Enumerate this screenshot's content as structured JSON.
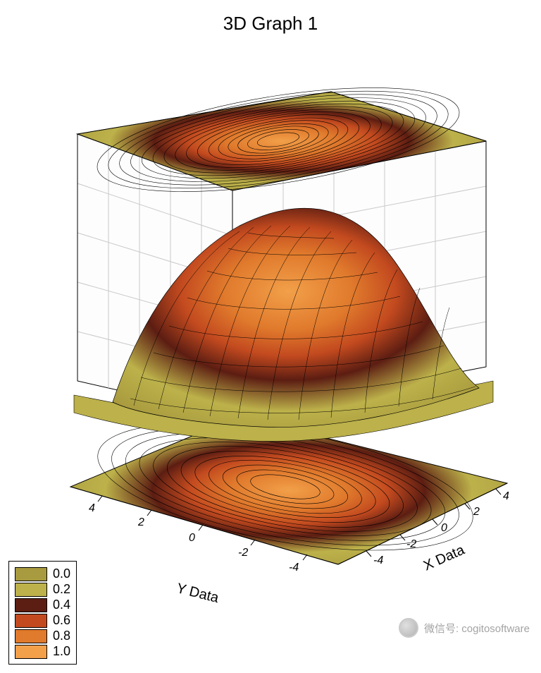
{
  "chart": {
    "type": "3d-surface-with-projections",
    "title": "3D Graph 1",
    "title_fontsize": 26,
    "background_color": "#ffffff",
    "x_axis": {
      "label": "X Data",
      "label_fontsize": 20,
      "ticks": [
        -4,
        -2,
        0,
        2,
        4
      ],
      "range": [
        -5,
        5
      ]
    },
    "y_axis": {
      "label": "Y Data",
      "label_fontsize": 20,
      "ticks": [
        -4,
        -2,
        0,
        2,
        4
      ],
      "range": [
        -5,
        5
      ]
    },
    "z_axis": {
      "range": [
        0,
        1
      ]
    },
    "surface": {
      "function_hint": "gaussian_peak",
      "mesh_line_color": "#000000",
      "mesh_line_width": 0.5,
      "grid_backdrop_color": "#c9c9c9"
    },
    "projections": {
      "top_contour": true,
      "bottom_contour": true,
      "contour_line_color": "#000000",
      "contour_count": 28
    },
    "colormap": {
      "stops": [
        {
          "value": 0.0,
          "color": "#a89a3e"
        },
        {
          "value": 0.2,
          "color": "#bcb14a"
        },
        {
          "value": 0.4,
          "color": "#5c1d12"
        },
        {
          "value": 0.6,
          "color": "#c34a1f"
        },
        {
          "value": 0.8,
          "color": "#e07a2c"
        },
        {
          "value": 1.0,
          "color": "#f2a04a"
        }
      ]
    },
    "legend": {
      "position": "bottom-left",
      "border_color": "#000000",
      "swatch_border": "#000000",
      "items": [
        {
          "label": "0.0",
          "color": "#a89a3e"
        },
        {
          "label": "0.2",
          "color": "#bcb14a"
        },
        {
          "label": "0.4",
          "color": "#5c1d12"
        },
        {
          "label": "0.6",
          "color": "#c34a1f"
        },
        {
          "label": "0.8",
          "color": "#e07a2c"
        },
        {
          "label": "1.0",
          "color": "#f2a04a"
        }
      ]
    },
    "view": {
      "azimuth_deg": -60,
      "elevation_deg": 25
    }
  },
  "watermark": {
    "text": "微信号: cogitosoftware",
    "text_color": "#8d8d8d"
  }
}
